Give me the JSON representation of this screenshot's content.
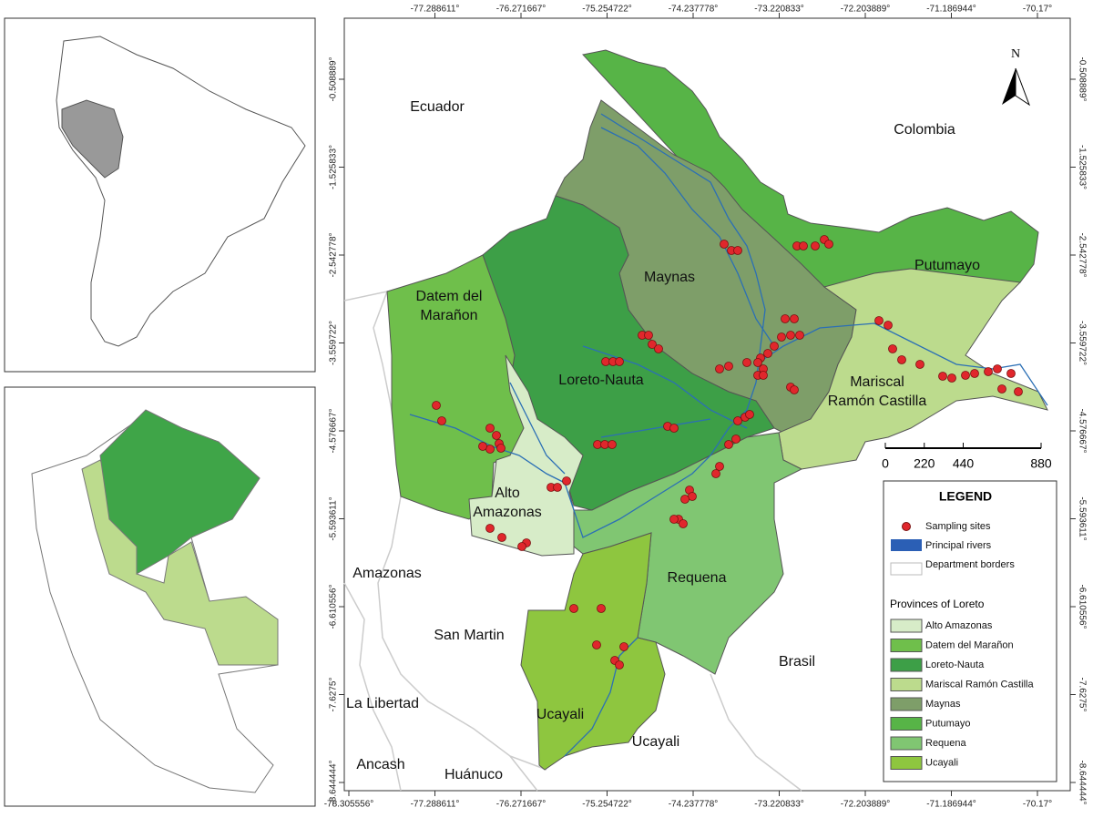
{
  "longitude_labels": [
    "-78.305556°",
    "-77.288611°",
    "-76.271667°",
    "-75.254722°",
    "-74.237778°",
    "-73.220833°",
    "-72.203889°",
    "-71.186944°",
    "-70.17°"
  ],
  "latitude_labels": [
    "-0.508889°",
    "-1.525833°",
    "-2.542778°",
    "-3.559722°",
    "-4.576667°",
    "-5.593611°",
    "-6.610556°",
    "-7.6275°",
    "-8.644444°"
  ],
  "north_label": "N",
  "places": [
    {
      "lines": [
        "Ecuador"
      ]
    },
    {
      "lines": [
        "Colombia"
      ]
    },
    {
      "lines": [
        "Putumayo"
      ]
    },
    {
      "lines": [
        "Maynas"
      ]
    },
    {
      "lines": [
        "Datem del",
        "Marañon"
      ]
    },
    {
      "lines": [
        "Loreto-Nauta"
      ]
    },
    {
      "lines": [
        "Mariscal",
        "Ramón Castilla"
      ]
    },
    {
      "lines": [
        "Alto",
        "Amazonas"
      ]
    },
    {
      "lines": [
        "Requena"
      ]
    },
    {
      "lines": [
        "Amazonas"
      ]
    },
    {
      "lines": [
        "San Martin"
      ]
    },
    {
      "lines": [
        "Brasil"
      ]
    },
    {
      "lines": [
        "La Libertad"
      ]
    },
    {
      "lines": [
        "Ucayali"
      ]
    },
    {
      "lines": [
        "Ucayali"
      ]
    },
    {
      "lines": [
        "Ancash"
      ]
    },
    {
      "lines": [
        "Huánuco"
      ]
    }
  ],
  "scale_bar": {
    "ticks": [
      0,
      220,
      440,
      880
    ]
  },
  "legend": {
    "title": "LEGEND",
    "items": [
      "Sampling sites",
      "Principal rivers",
      "Department borders"
    ],
    "provinces_title": "Provinces of Loreto",
    "provinces": [
      {
        "name": "Alto Amazonas",
        "color": "#d7ecc8"
      },
      {
        "name": "Datem del Marañon",
        "color": "#6fbf4b"
      },
      {
        "name": "Loreto-Nauta",
        "color": "#3d9f47"
      },
      {
        "name": "Mariscal Ramón Castilla",
        "color": "#bcdb8d"
      },
      {
        "name": "Maynas",
        "color": "#7e9e69"
      },
      {
        "name": "Putumayo",
        "color": "#57b447"
      },
      {
        "name": "Requena",
        "color": "#80c672"
      },
      {
        "name": "Ucayali",
        "color": "#8ec63f"
      }
    ]
  }
}
